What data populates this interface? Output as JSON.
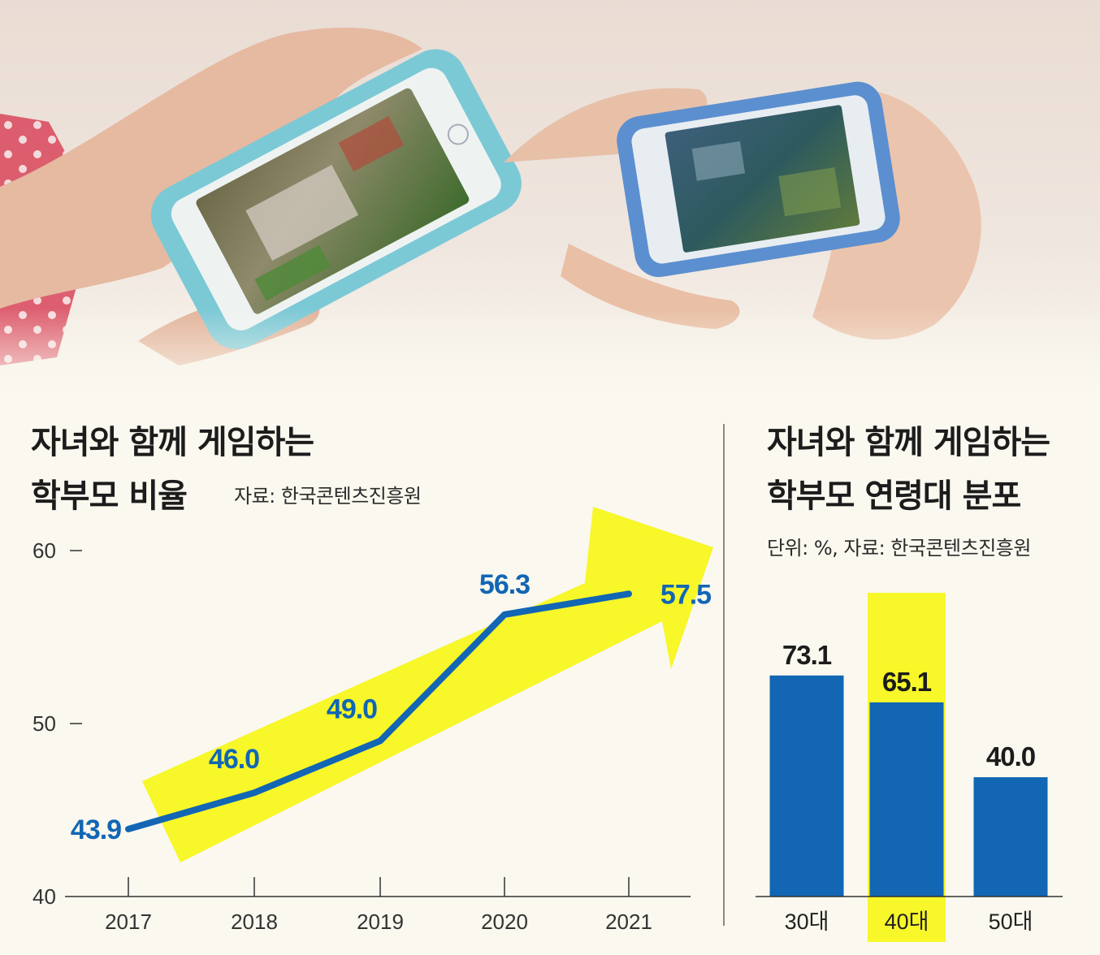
{
  "photo": {
    "description_icon": "phone-game-photo-icon"
  },
  "colors": {
    "series": "#1266b4",
    "highlight": "#f7f72a",
    "axis": "#333333",
    "background": "#faf8ef"
  },
  "chart_data": [
    {
      "type": "line",
      "title": "자녀와 함께 게임하는 학부모 비율",
      "title_lines": [
        "자녀와 함께 게임하는",
        "학부모 비율"
      ],
      "source": "자료: 한국콘텐츠진흥원",
      "categories": [
        "2017",
        "2018",
        "2019",
        "2020",
        "2021"
      ],
      "values": [
        43.9,
        46.0,
        49.0,
        56.3,
        57.5
      ],
      "value_labels": [
        "43.9",
        "46.0",
        "49.0",
        "56.3",
        "57.5"
      ],
      "yticks": [
        "40",
        "50",
        "60"
      ],
      "ylim": [
        40,
        60
      ],
      "xlabel": "",
      "ylabel": "",
      "grid": false
    },
    {
      "type": "bar",
      "title": "자녀와 함께 게임하는 학부모 연령대 분포",
      "title_lines": [
        "자녀와 함께 게임하는",
        "학부모 연령대 분포"
      ],
      "source": "단위: %, 자료: 한국콘텐츠진흥원",
      "categories": [
        "30대",
        "40대",
        "50대"
      ],
      "values": [
        73.1,
        65.1,
        40.0
      ],
      "value_labels": [
        "73.1",
        "65.1",
        "40.0"
      ],
      "highlighted": "40대",
      "ylim": [
        0,
        100
      ],
      "xlabel": "",
      "ylabel": "",
      "grid": false
    }
  ]
}
